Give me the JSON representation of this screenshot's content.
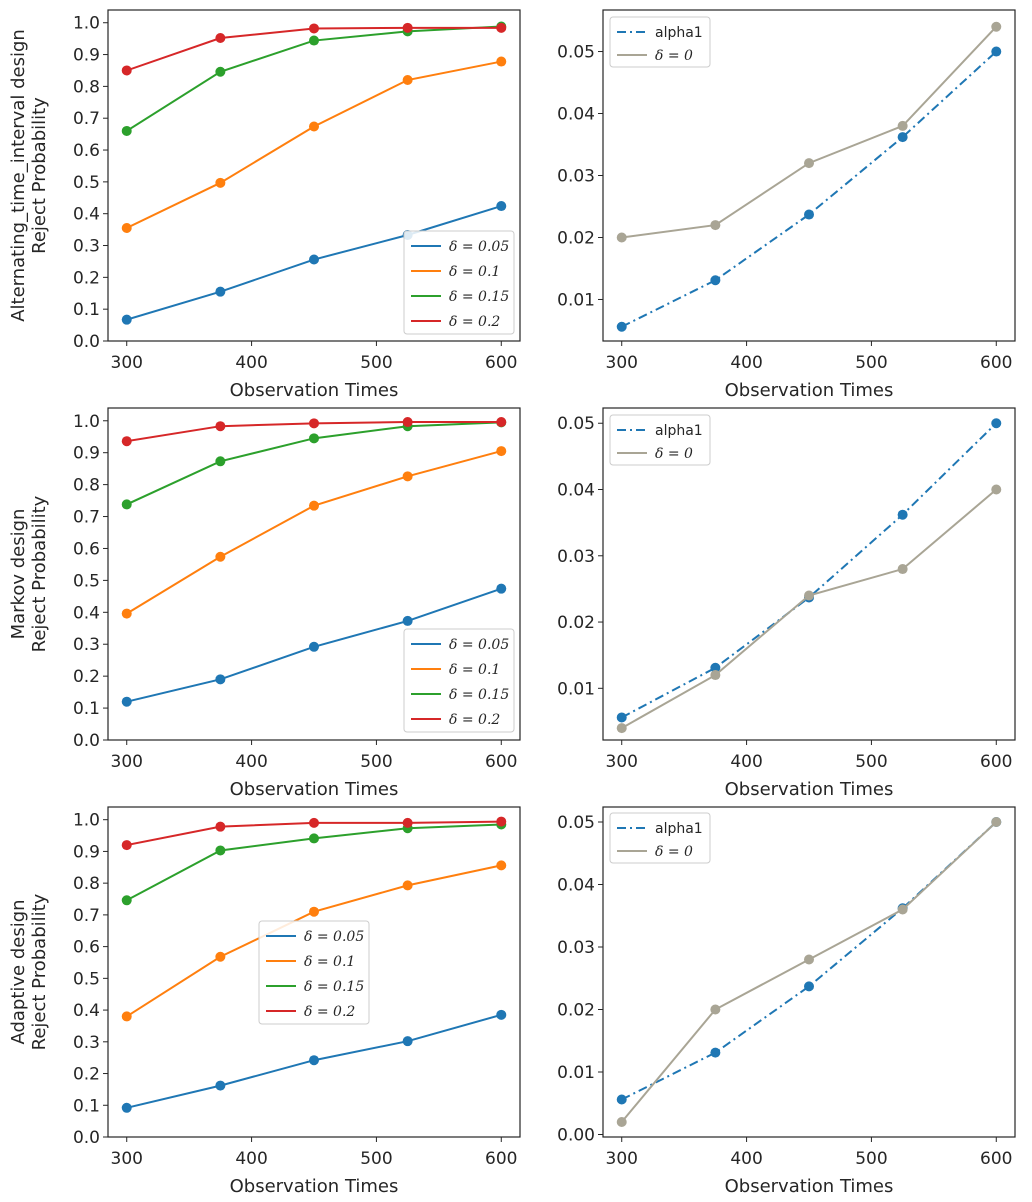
{
  "figure": {
    "description": "3x2 grid of line charts comparing reject probability across designs"
  },
  "chart_data": [
    {
      "id": "alternating-power",
      "type": "line",
      "title": "",
      "xlabel": "Observation Times",
      "ylabel": [
        "Alternating_time_interval design",
        "Reject Probability"
      ],
      "x": [
        300,
        375,
        450,
        525,
        600
      ],
      "xticks": [
        300,
        400,
        500,
        600
      ],
      "xlim": [
        285,
        615
      ],
      "yticks": [
        0.0,
        0.1,
        0.2,
        0.3,
        0.4,
        0.5,
        0.6,
        0.7,
        0.8,
        0.9,
        1.0
      ],
      "ytick_labels": [
        "0.0",
        "0.1",
        "0.2",
        "0.3",
        "0.4",
        "0.5",
        "0.6",
        "0.7",
        "0.8",
        "0.9",
        "1.0"
      ],
      "ylim": [
        0.0,
        1.04
      ],
      "grid": false,
      "legend_position": "lower-right",
      "series": [
        {
          "name": "δ = 0.05",
          "color": "#1f77b4",
          "style": "solid",
          "values": [
            0.067,
            0.155,
            0.256,
            0.333,
            0.424
          ]
        },
        {
          "name": "δ = 0.1",
          "color": "#ff7f0e",
          "style": "solid",
          "values": [
            0.355,
            0.497,
            0.674,
            0.82,
            0.878
          ]
        },
        {
          "name": "δ = 0.15",
          "color": "#2ca02c",
          "style": "solid",
          "values": [
            0.66,
            0.846,
            0.944,
            0.973,
            0.988
          ]
        },
        {
          "name": "δ = 0.2",
          "color": "#d62728",
          "style": "solid",
          "values": [
            0.85,
            0.952,
            0.982,
            0.984,
            0.984
          ]
        }
      ]
    },
    {
      "id": "alternating-size",
      "type": "line",
      "title": "",
      "xlabel": "Observation Times",
      "ylabel": [],
      "x": [
        300,
        375,
        450,
        525,
        600
      ],
      "xticks": [
        300,
        400,
        500,
        600
      ],
      "xlim": [
        285,
        615
      ],
      "yticks": [
        0.01,
        0.02,
        0.03,
        0.04,
        0.05
      ],
      "ytick_labels": [
        "0.01",
        "0.02",
        "0.03",
        "0.04",
        "0.05"
      ],
      "ylim": [
        0.0033,
        0.0567
      ],
      "grid": false,
      "legend_position": "upper-left",
      "series": [
        {
          "name": "alpha1",
          "color": "#1f77b4",
          "style": "dashdot",
          "values": [
            0.0056,
            0.0131,
            0.0237,
            0.0362,
            0.05
          ]
        },
        {
          "name": "δ = 0",
          "color": "#a9a595",
          "style": "solid",
          "values": [
            0.02,
            0.022,
            0.032,
            0.038,
            0.054
          ]
        }
      ]
    },
    {
      "id": "markov-power",
      "type": "line",
      "title": "",
      "xlabel": "Observation Times",
      "ylabel": [
        "Markov design",
        "Reject Probability"
      ],
      "x": [
        300,
        375,
        450,
        525,
        600
      ],
      "xticks": [
        300,
        400,
        500,
        600
      ],
      "xlim": [
        285,
        615
      ],
      "yticks": [
        0.0,
        0.1,
        0.2,
        0.3,
        0.4,
        0.5,
        0.6,
        0.7,
        0.8,
        0.9,
        1.0
      ],
      "ytick_labels": [
        "0.0",
        "0.1",
        "0.2",
        "0.3",
        "0.4",
        "0.5",
        "0.6",
        "0.7",
        "0.8",
        "0.9",
        "1.0"
      ],
      "ylim": [
        0.0,
        1.04
      ],
      "grid": false,
      "legend_position": "lower-right",
      "series": [
        {
          "name": "δ = 0.05",
          "color": "#1f77b4",
          "style": "solid",
          "values": [
            0.12,
            0.19,
            0.292,
            0.373,
            0.474
          ]
        },
        {
          "name": "δ = 0.1",
          "color": "#ff7f0e",
          "style": "solid",
          "values": [
            0.396,
            0.574,
            0.734,
            0.826,
            0.905
          ]
        },
        {
          "name": "δ = 0.15",
          "color": "#2ca02c",
          "style": "solid",
          "values": [
            0.738,
            0.873,
            0.945,
            0.983,
            0.995
          ]
        },
        {
          "name": "δ = 0.2",
          "color": "#d62728",
          "style": "solid",
          "values": [
            0.936,
            0.983,
            0.992,
            0.996,
            0.996
          ]
        }
      ]
    },
    {
      "id": "markov-size",
      "type": "line",
      "title": "",
      "xlabel": "Observation Times",
      "ylabel": [],
      "x": [
        300,
        375,
        450,
        525,
        600
      ],
      "xticks": [
        300,
        400,
        500,
        600
      ],
      "xlim": [
        285,
        615
      ],
      "yticks": [
        0.01,
        0.02,
        0.03,
        0.04,
        0.05
      ],
      "ytick_labels": [
        "0.01",
        "0.02",
        "0.03",
        "0.04",
        "0.05"
      ],
      "ylim": [
        0.0022,
        0.0523
      ],
      "grid": false,
      "legend_position": "upper-left",
      "series": [
        {
          "name": "alpha1",
          "color": "#1f77b4",
          "style": "dashdot",
          "values": [
            0.0056,
            0.0131,
            0.0237,
            0.0362,
            0.05
          ]
        },
        {
          "name": "δ = 0",
          "color": "#a9a595",
          "style": "solid",
          "values": [
            0.004,
            0.012,
            0.024,
            0.028,
            0.04
          ]
        }
      ]
    },
    {
      "id": "adaptive-power",
      "type": "line",
      "title": "",
      "xlabel": "Observation Times",
      "ylabel": [
        "Adaptive design",
        "Reject Probability"
      ],
      "x": [
        300,
        375,
        450,
        525,
        600
      ],
      "xticks": [
        300,
        400,
        500,
        600
      ],
      "xlim": [
        285,
        615
      ],
      "yticks": [
        0.0,
        0.1,
        0.2,
        0.3,
        0.4,
        0.5,
        0.6,
        0.7,
        0.8,
        0.9,
        1.0
      ],
      "ytick_labels": [
        "0.0",
        "0.1",
        "0.2",
        "0.3",
        "0.4",
        "0.5",
        "0.6",
        "0.7",
        "0.8",
        "0.9",
        "1.0"
      ],
      "ylim": [
        0.0,
        1.04
      ],
      "grid": false,
      "legend_position": "center",
      "series": [
        {
          "name": "δ = 0.05",
          "color": "#1f77b4",
          "style": "solid",
          "values": [
            0.092,
            0.162,
            0.242,
            0.302,
            0.385
          ]
        },
        {
          "name": "δ = 0.1",
          "color": "#ff7f0e",
          "style": "solid",
          "values": [
            0.38,
            0.568,
            0.71,
            0.793,
            0.856
          ]
        },
        {
          "name": "δ = 0.15",
          "color": "#2ca02c",
          "style": "solid",
          "values": [
            0.746,
            0.903,
            0.941,
            0.973,
            0.985
          ]
        },
        {
          "name": "δ = 0.2",
          "color": "#d62728",
          "style": "solid",
          "values": [
            0.92,
            0.978,
            0.99,
            0.99,
            0.994
          ]
        }
      ]
    },
    {
      "id": "adaptive-size",
      "type": "line",
      "title": "",
      "xlabel": "Observation Times",
      "ylabel": [],
      "x": [
        300,
        375,
        450,
        525,
        600
      ],
      "xticks": [
        300,
        400,
        500,
        600
      ],
      "xlim": [
        285,
        615
      ],
      "yticks": [
        0.0,
        0.01,
        0.02,
        0.03,
        0.04,
        0.05
      ],
      "ytick_labels": [
        "0.00",
        "0.01",
        "0.02",
        "0.03",
        "0.04",
        "0.05"
      ],
      "ylim": [
        -0.0004,
        0.0524
      ],
      "grid": false,
      "legend_position": "upper-left",
      "series": [
        {
          "name": "alpha1",
          "color": "#1f77b4",
          "style": "dashdot",
          "values": [
            0.0056,
            0.0131,
            0.0237,
            0.0362,
            0.05
          ]
        },
        {
          "name": "δ = 0",
          "color": "#a9a595",
          "style": "solid",
          "values": [
            0.002,
            0.02,
            0.028,
            0.036,
            0.05
          ]
        }
      ]
    }
  ]
}
